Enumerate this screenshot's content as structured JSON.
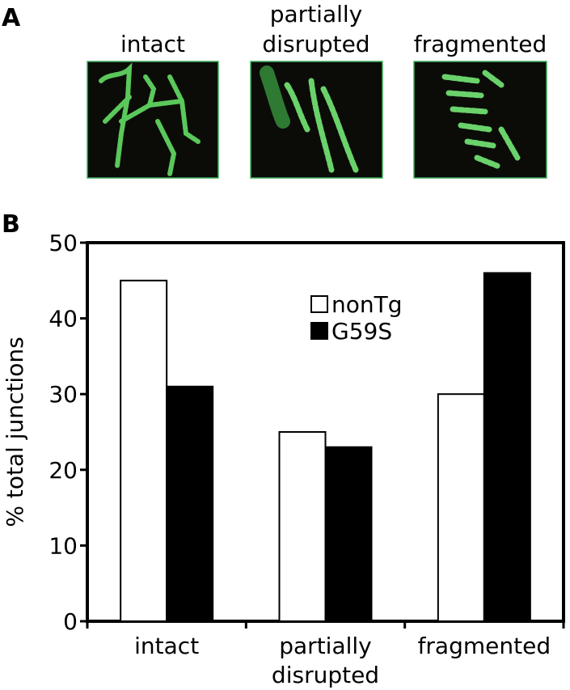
{
  "panel_a": {
    "label": "A",
    "images": [
      "intact",
      "partially disrupted",
      "fragmented"
    ]
  },
  "panel_b_label": "B",
  "chart_data": {
    "type": "bar",
    "categories": [
      "intact",
      "partially disrupted",
      "fragmented"
    ],
    "series": [
      {
        "name": "nonTg",
        "color": "#ffffff",
        "values": [
          45,
          25,
          30
        ]
      },
      {
        "name": "G59S",
        "color": "#000000",
        "values": [
          31,
          23,
          46
        ]
      }
    ],
    "ylabel": "% total junctions",
    "ylim": [
      0,
      50
    ],
    "yticks": [
      0,
      10,
      20,
      30,
      40,
      50
    ],
    "legend": "upper center"
  }
}
